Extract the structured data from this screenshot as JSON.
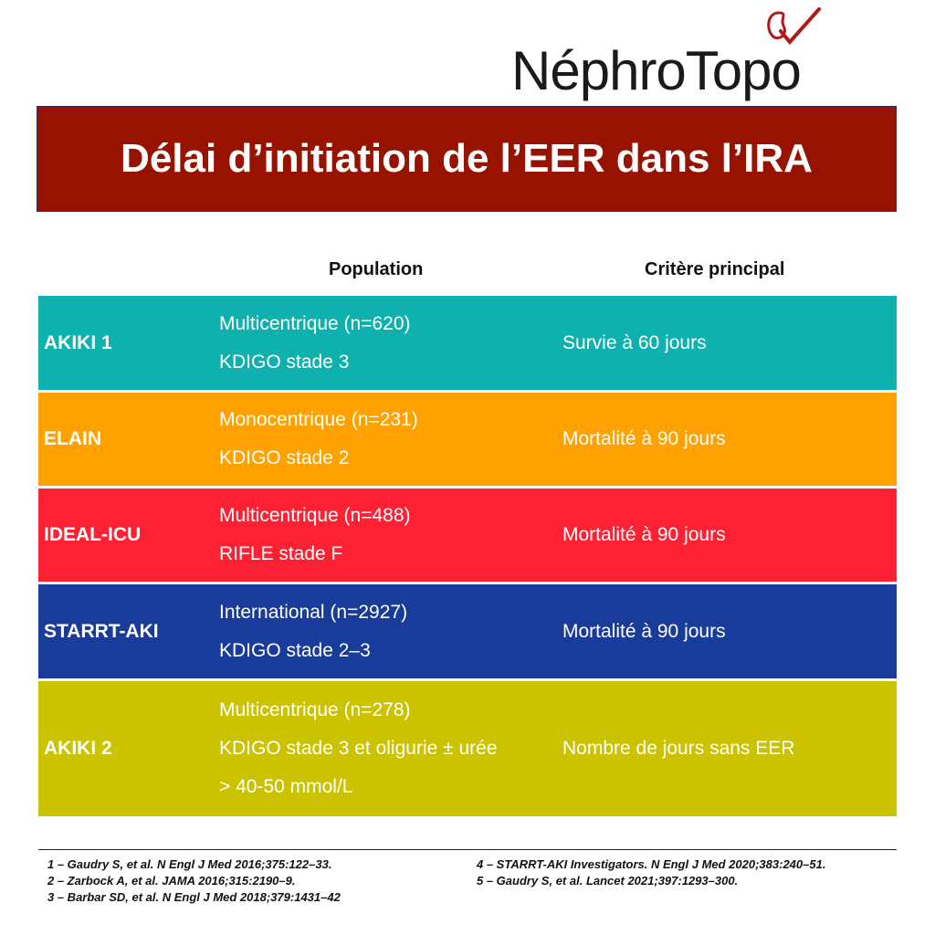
{
  "logo": {
    "text": "NéphroTopo"
  },
  "title": "Délai d’initiation de l’EER dans l’IRA",
  "headers": {
    "population": "Population",
    "criterion": "Critère principal"
  },
  "rows": [
    {
      "study": "AKIKI 1",
      "pop1": "Multicentrique (n=620)",
      "pop2": "KDIGO stade 3",
      "pop3": "",
      "criterion": "Survie à 60 jours",
      "color": "#0fb1ae"
    },
    {
      "study": "ELAIN",
      "pop1": "Monocentrique (n=231)",
      "pop2": "KDIGO stade 2",
      "pop3": "",
      "criterion": "Mortalité à 90 jours",
      "color": "#ffa200"
    },
    {
      "study": "IDEAL-ICU",
      "pop1": "Multicentrique (n=488)",
      "pop2": "RIFLE stade F",
      "pop3": "",
      "criterion": "Mortalité à 90 jours",
      "color": "#ff2033"
    },
    {
      "study": "STARRT-AKI",
      "pop1": "International (n=2927)",
      "pop2": "KDIGO stade 2–3",
      "pop3": "",
      "criterion": "Mortalité à 90 jours",
      "color": "#193b9a"
    },
    {
      "study": "AKIKI 2",
      "pop1": "Multicentrique (n=278)",
      "pop2": "KDIGO stade 3 et oligurie ± urée",
      "pop3": "> 40-50 mmol/L",
      "criterion": "Nombre de jours sans EER",
      "color": "#cbc200"
    }
  ],
  "references": {
    "left": [
      "1 – Gaudry S, et al. N Engl J Med 2016;375:122–33.",
      "2 – Zarbock A, et al. JAMA 2016;315:2190–9.",
      "3 – Barbar SD, et al. N Engl J Med 2018;379:1431–42"
    ],
    "right": [
      "4 – STARRT-AKI Investigators. N Engl J Med 2020;383:240–51.",
      "5 – Gaudry S, et al. Lancet 2021;397:1293–300."
    ]
  },
  "colors": {
    "title_bg": "#981200",
    "logo_accent": "#b01a1a"
  }
}
